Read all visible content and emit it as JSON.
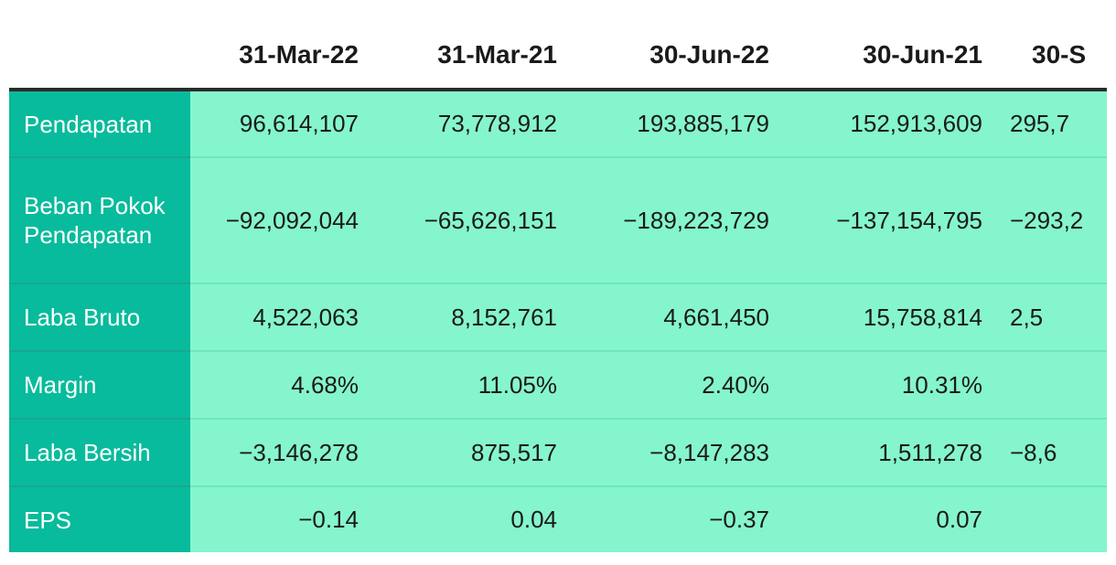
{
  "table": {
    "columns": [
      "31-Mar-22",
      "31-Mar-21",
      "30-Jun-22",
      "30-Jun-21",
      "30-S"
    ],
    "rows": [
      {
        "label": "Pendapatan",
        "values": [
          "96,614,107",
          "73,778,912",
          "193,885,179",
          "152,913,609",
          "295,7"
        ]
      },
      {
        "label": "Beban Pokok Pendapatan",
        "values": [
          "−92,092,044",
          "−65,626,151",
          "−189,223,729",
          "−137,154,795",
          "−293,2"
        ]
      },
      {
        "label": "Laba Bruto",
        "values": [
          "4,522,063",
          "8,152,761",
          "4,661,450",
          "15,758,814",
          "2,5"
        ]
      },
      {
        "label": "Margin",
        "values": [
          "4.68%",
          "11.05%",
          "2.40%",
          "10.31%",
          ""
        ]
      },
      {
        "label": "Laba Bersih",
        "values": [
          "−3,146,278",
          "875,517",
          "−8,147,283",
          "1,511,278",
          "−8,6"
        ]
      },
      {
        "label": "EPS",
        "values": [
          "−0.14",
          "0.04",
          "−0.37",
          "0.07",
          ""
        ]
      }
    ]
  },
  "colors": {
    "label_column_bg": "#08bb9c",
    "data_cell_bg": "#85f5cd",
    "header_rule": "#2b2b2b"
  }
}
